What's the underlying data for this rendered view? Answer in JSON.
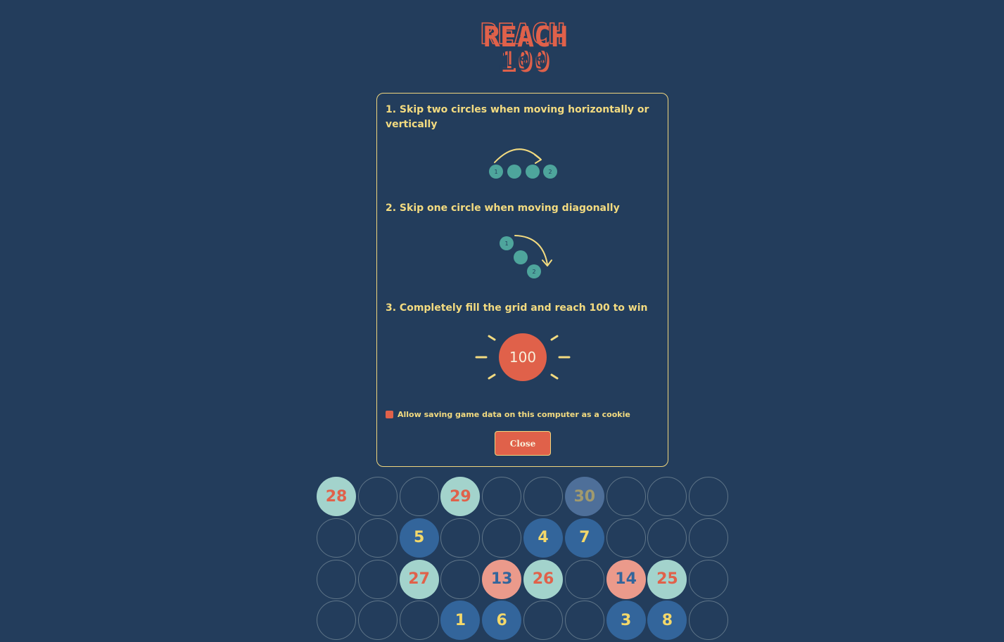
{
  "logo": {
    "line1": "REACH",
    "line2": "100"
  },
  "modal": {
    "rule1": "1. Skip two circles when moving horizontally or vertically",
    "rule1_example": [
      "1",
      "2"
    ],
    "rule2": "2. Skip one circle when moving diagonally",
    "rule2_example": [
      "1",
      "2"
    ],
    "rule3": "3. Completely fill the grid and reach 100 to win",
    "rule3_example": "100",
    "cookie_label": "Allow saving game data on this computer as a cookie",
    "cookie_checked": true,
    "close_label": "Close"
  },
  "colors": {
    "background": "#233d5c",
    "accent_yellow": "#f3db80",
    "accent_red": "#e0614a",
    "teal": "#4ea59c"
  },
  "grid": {
    "rows": [
      [
        {
          "v": "28",
          "s": "mint"
        },
        null,
        null,
        {
          "v": "29",
          "s": "mint"
        },
        null,
        null,
        {
          "v": "30",
          "s": "last"
        },
        null,
        null,
        null
      ],
      [
        null,
        null,
        {
          "v": "5",
          "s": "blue"
        },
        null,
        null,
        {
          "v": "4",
          "s": "blue"
        },
        {
          "v": "7",
          "s": "blue"
        },
        null,
        null,
        null
      ],
      [
        null,
        null,
        {
          "v": "27",
          "s": "mint"
        },
        null,
        {
          "v": "13",
          "s": "pink"
        },
        {
          "v": "26",
          "s": "mint"
        },
        null,
        {
          "v": "14",
          "s": "pink"
        },
        {
          "v": "25",
          "s": "mint"
        },
        null
      ],
      [
        null,
        null,
        null,
        {
          "v": "1",
          "s": "blue"
        },
        {
          "v": "6",
          "s": "blue"
        },
        null,
        null,
        {
          "v": "3",
          "s": "blue"
        },
        {
          "v": "8",
          "s": "blue"
        },
        null
      ]
    ]
  }
}
